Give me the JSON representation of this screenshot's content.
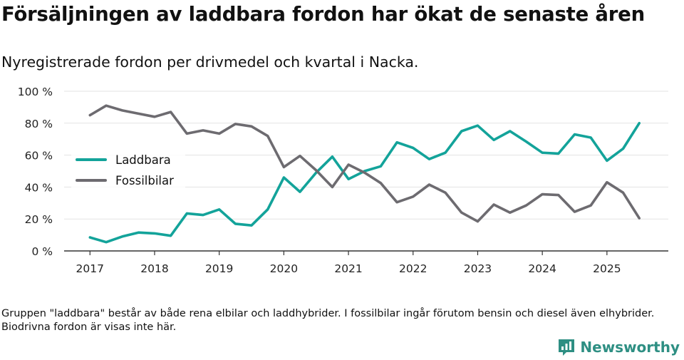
{
  "title": "Försäljningen av laddbara fordon har ökat de senaste åren",
  "subtitle": "Nyregistrerade fordon per drivmedel och kvartal i Nacka.",
  "footnote": "Gruppen \"laddbara\" består av både rena elbilar och laddhybrider. I fossilbilar ingår förutom bensin och diesel även elhybrider. Biodrivna fordon är visas inte här.",
  "brand": {
    "name": "Newsworthy",
    "color": "#2e8f83"
  },
  "chart_data": {
    "type": "line",
    "title": "Försäljningen av laddbara fordon har ökat de senaste åren",
    "subtitle": "Nyregistrerade fordon per drivmedel och kvartal i Nacka.",
    "xlabel": "",
    "ylabel": "",
    "x": [
      2017.0,
      2017.25,
      2017.5,
      2017.75,
      2018.0,
      2018.25,
      2018.5,
      2018.75,
      2019.0,
      2019.25,
      2019.5,
      2019.75,
      2020.0,
      2020.25,
      2020.5,
      2020.75,
      2021.0,
      2021.25,
      2021.5,
      2021.75,
      2022.0,
      2022.25,
      2022.5,
      2022.75,
      2023.0,
      2023.25,
      2023.5,
      2023.75,
      2024.0,
      2024.25,
      2024.5,
      2024.75,
      2025.0,
      2025.25,
      2025.5
    ],
    "xlim": [
      2016.6,
      2025.95
    ],
    "ylim": [
      0,
      100
    ],
    "xticks": [
      2017,
      2018,
      2019,
      2020,
      2021,
      2022,
      2023,
      2024,
      2025
    ],
    "xtick_labels": [
      "2017",
      "2018",
      "2019",
      "2020",
      "2021",
      "2022",
      "2023",
      "2024",
      "2025"
    ],
    "yticks": [
      0,
      20,
      40,
      60,
      80,
      100
    ],
    "ytick_labels": [
      "0 %",
      "20 %",
      "40 %",
      "60 %",
      "80 %",
      "100 %"
    ],
    "grid": true,
    "legend_position": "left",
    "series": [
      {
        "name": "Laddbara",
        "color": "#13a39a",
        "values": [
          8.5,
          5.5,
          9,
          11.5,
          11,
          9.5,
          23.5,
          22.5,
          26,
          17,
          16,
          26,
          46,
          37,
          49,
          59,
          45,
          50,
          53,
          68,
          64.5,
          57.5,
          61.5,
          75,
          78.5,
          69.5,
          75,
          68.5,
          61.5,
          61,
          73,
          71,
          56.5,
          64,
          80
        ]
      },
      {
        "name": "Fossilbilar",
        "color": "#6d6b70",
        "values": [
          85,
          91,
          88,
          86,
          84,
          87,
          73.5,
          75.5,
          73.5,
          79.5,
          78,
          72,
          52.5,
          59.5,
          50.5,
          40,
          54,
          49,
          42.5,
          30.5,
          34,
          41.5,
          36.5,
          24,
          18.5,
          29,
          24,
          28.5,
          35.5,
          35,
          24.5,
          28.5,
          43,
          36.5,
          20.5
        ]
      }
    ]
  }
}
